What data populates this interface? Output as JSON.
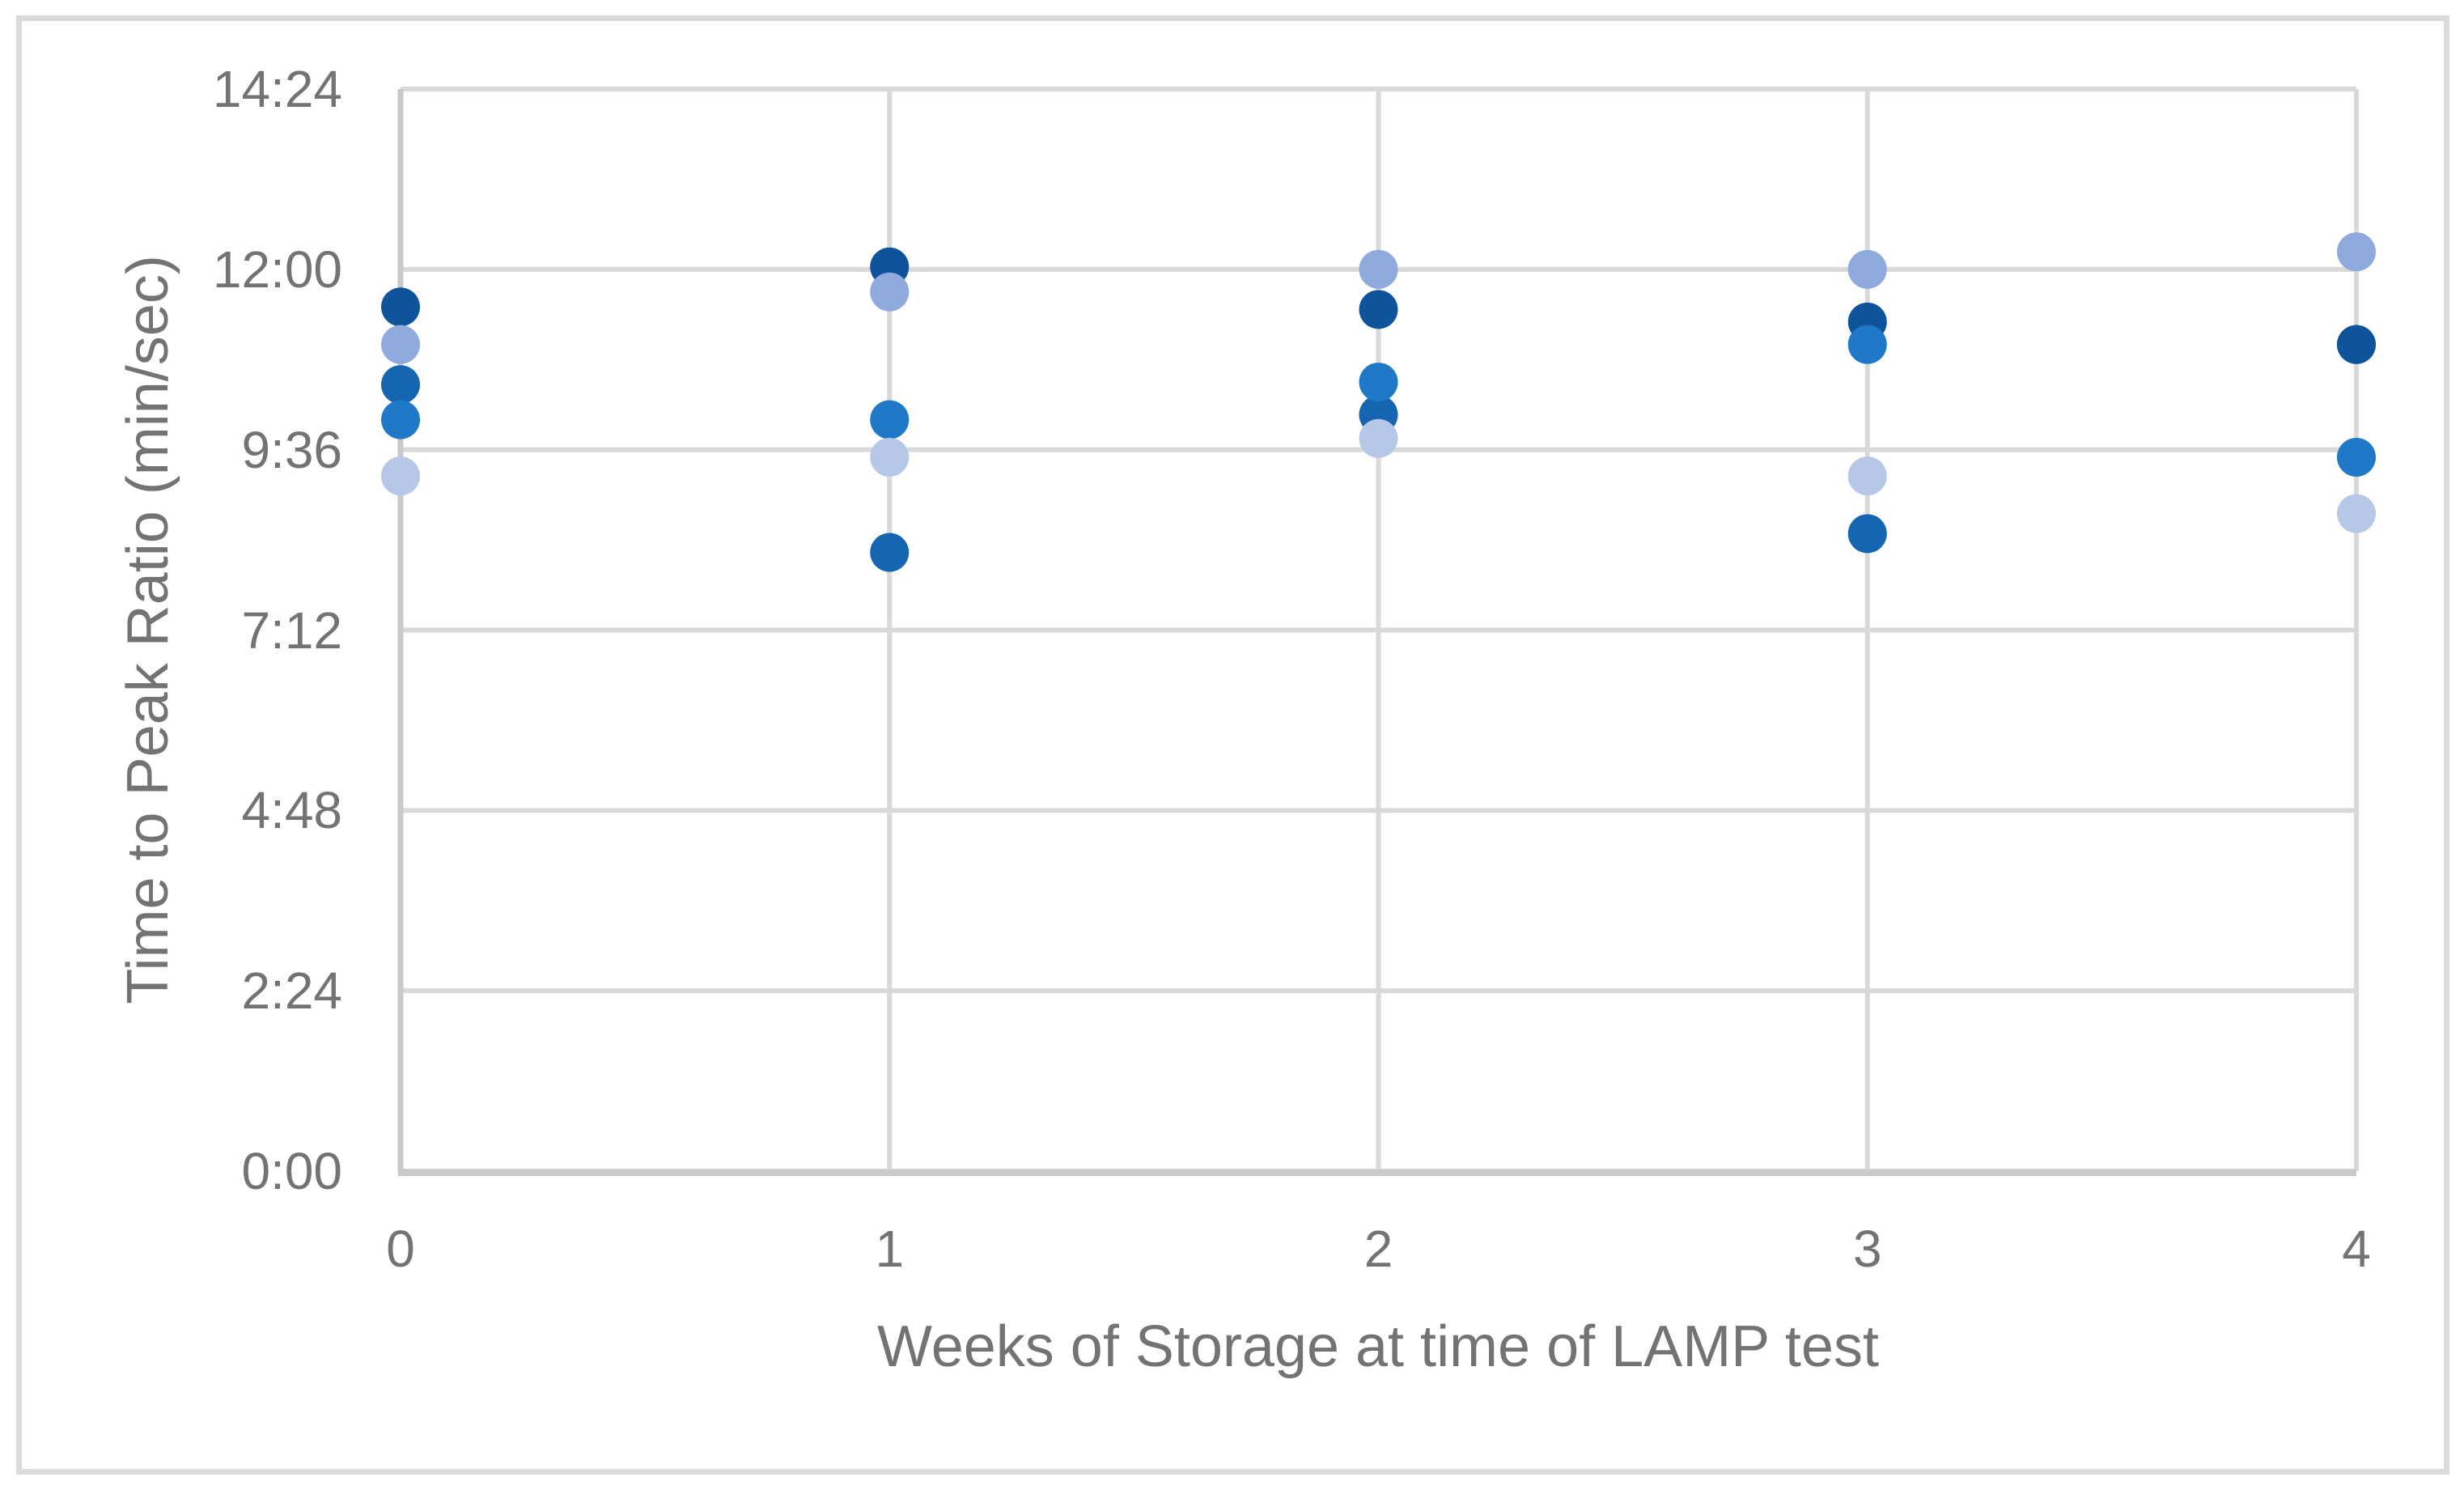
{
  "figure": {
    "background_color": "#FFFFFF",
    "border_color": "#DBDBDB"
  },
  "chart_data": {
    "type": "scatter",
    "title": "",
    "xlabel": "Weeks of Storage at time of LAMP test",
    "ylabel": "Time to Peak Ratio (min/sec)",
    "x_categories": [
      "0",
      "1",
      "2",
      "3",
      "4"
    ],
    "x_values": [
      0,
      1,
      2,
      3,
      4
    ],
    "y_ticks": [
      {
        "label": "14:24",
        "seconds": 864
      },
      {
        "label": "12:00",
        "seconds": 720
      },
      {
        "label": "9:36",
        "seconds": 576
      },
      {
        "label": "7:12",
        "seconds": 432
      },
      {
        "label": "4:48",
        "seconds": 288
      },
      {
        "label": "2:24",
        "seconds": 144
      },
      {
        "label": "0:00",
        "seconds": 0
      }
    ],
    "ylim_seconds": [
      0,
      864
    ],
    "grid": true,
    "legend_position": "none",
    "marker": {
      "shape": "circle",
      "radius_px": 24
    },
    "style_colors": {
      "gridline": "#D9D9D9",
      "axis_line": "#C9C9C9",
      "text": "#737373"
    },
    "series": [
      {
        "name": "medium-blue",
        "color": "#1565B0",
        "values_mmss": [
          "10:28",
          "8:14",
          "10:04",
          "8:29",
          "11:00"
        ],
        "values_seconds": [
          628,
          494,
          604,
          509,
          660
        ]
      },
      {
        "name": "dark-navy-blue",
        "color": "#0F549B",
        "values_mmss": [
          "11:30",
          "12:02",
          "11:28",
          "11:18",
          "11:00"
        ],
        "values_seconds": [
          690,
          722,
          688,
          678,
          660
        ]
      },
      {
        "name": "bright-blue",
        "color": "#1F78C8",
        "values_mmss": [
          "10:00",
          "10:00",
          "10:30",
          "11:00",
          "9:30"
        ],
        "values_seconds": [
          600,
          600,
          630,
          660,
          570
        ]
      },
      {
        "name": "periwinkle-blue",
        "color": "#8FAADC",
        "values_mmss": [
          "11:00",
          "11:42",
          "12:00",
          "12:00",
          "12:14"
        ],
        "values_seconds": [
          660,
          702,
          720,
          720,
          734
        ]
      },
      {
        "name": "light-blue",
        "color": "#B7C7E7",
        "values_mmss": [
          "9:15",
          "9:30",
          "9:45",
          "9:15",
          "8:45"
        ],
        "values_seconds": [
          555,
          570,
          585,
          555,
          525
        ]
      }
    ]
  }
}
